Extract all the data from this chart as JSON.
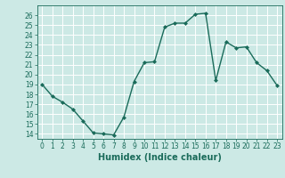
{
  "x": [
    0,
    1,
    2,
    3,
    4,
    5,
    6,
    7,
    8,
    9,
    10,
    11,
    12,
    13,
    14,
    15,
    16,
    17,
    18,
    19,
    20,
    21,
    22,
    23
  ],
  "y": [
    19.0,
    17.8,
    17.2,
    16.5,
    15.3,
    14.1,
    14.0,
    13.9,
    15.7,
    19.3,
    21.2,
    21.3,
    24.8,
    25.2,
    25.2,
    26.1,
    26.2,
    19.4,
    23.3,
    22.7,
    22.8,
    21.2,
    20.4,
    18.9
  ],
  "line_color": "#1a6b5a",
  "marker": "D",
  "marker_size": 2.0,
  "bg_color": "#cce9e5",
  "grid_color": "#ffffff",
  "xlabel": "Humidex (Indice chaleur)",
  "xlim": [
    -0.5,
    23.5
  ],
  "ylim": [
    13.5,
    27
  ],
  "yticks": [
    14,
    15,
    16,
    17,
    18,
    19,
    20,
    21,
    22,
    23,
    24,
    25,
    26
  ],
  "xticks": [
    0,
    1,
    2,
    3,
    4,
    5,
    6,
    7,
    8,
    9,
    10,
    11,
    12,
    13,
    14,
    15,
    16,
    17,
    18,
    19,
    20,
    21,
    22,
    23
  ],
  "xtick_labels": [
    "0",
    "1",
    "2",
    "3",
    "4",
    "5",
    "6",
    "7",
    "8",
    "9",
    "10",
    "11",
    "12",
    "13",
    "14",
    "15",
    "16",
    "17",
    "18",
    "19",
    "20",
    "21",
    "22",
    "23"
  ],
  "tick_fontsize": 5.5,
  "xlabel_fontsize": 7.0,
  "line_width": 1.0
}
